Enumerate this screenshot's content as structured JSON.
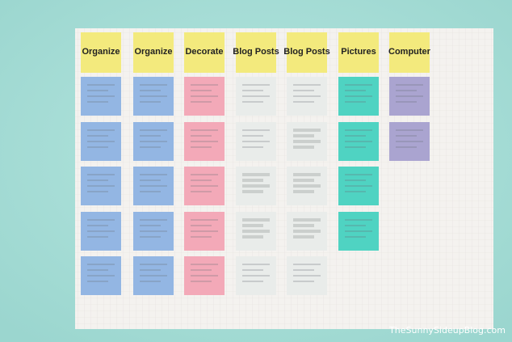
{
  "headers": [
    "Organize",
    "Organize",
    "Decorate",
    "Blog Posts",
    "Blog Posts",
    "Pictures",
    "Computer"
  ],
  "watermark": "TheSunnySideupBlog.com"
}
